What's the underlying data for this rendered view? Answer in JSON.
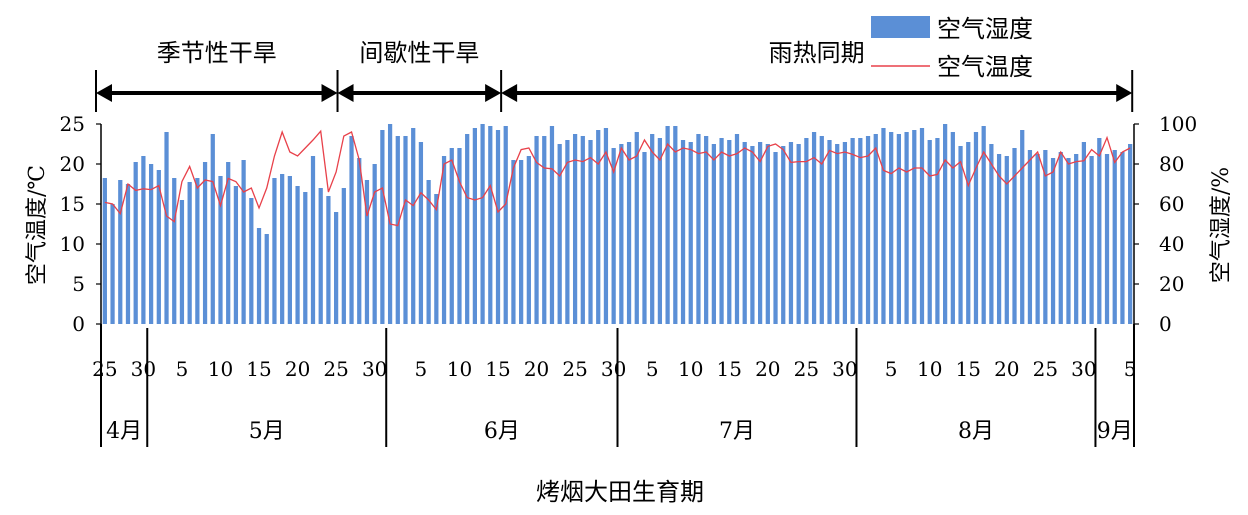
{
  "chart_data": {
    "type": "bar+line",
    "xlabel": "烤烟大田生育期",
    "ylabel_left": "空气温度/℃",
    "ylabel_right": "空气湿度/%",
    "ylim_left": [
      0,
      25
    ],
    "ylim_right": [
      0,
      100
    ],
    "left_ticks": [
      "0",
      "5",
      "10",
      "15",
      "20",
      "25"
    ],
    "right_ticks": [
      "0",
      "20",
      "40",
      "60",
      "80",
      "100"
    ],
    "legend": {
      "position": "top-right",
      "items": [
        "空气湿度",
        "空气温度"
      ]
    },
    "colors": {
      "bars": "#5b8fd6",
      "line": "#e8414a"
    },
    "phases": [
      {
        "label": "季节性干旱",
        "start_day": 0,
        "end_day": 31
      },
      {
        "label": "间歇性干旱",
        "start_day": 31,
        "end_day": 52
      },
      {
        "label": "雨热同期",
        "start_day": 52,
        "end_day": 133
      }
    ],
    "months": [
      {
        "label": "4月",
        "start_day": 0,
        "end_day": 6
      },
      {
        "label": "5月",
        "start_day": 6,
        "end_day": 37
      },
      {
        "label": "6月",
        "start_day": 37,
        "end_day": 67
      },
      {
        "label": "7月",
        "start_day": 67,
        "end_day": 98
      },
      {
        "label": "8月",
        "start_day": 98,
        "end_day": 129
      },
      {
        "label": "9月",
        "start_day": 129,
        "end_day": 134
      }
    ],
    "day_ticks": [
      {
        "label": "25",
        "day": 0
      },
      {
        "label": "30",
        "day": 5
      },
      {
        "label": "5",
        "day": 10
      },
      {
        "label": "10",
        "day": 15
      },
      {
        "label": "15",
        "day": 20
      },
      {
        "label": "20",
        "day": 25
      },
      {
        "label": "25",
        "day": 30
      },
      {
        "label": "30",
        "day": 35
      },
      {
        "label": "5",
        "day": 41
      },
      {
        "label": "10",
        "day": 46
      },
      {
        "label": "15",
        "day": 51
      },
      {
        "label": "20",
        "day": 56
      },
      {
        "label": "25",
        "day": 61
      },
      {
        "label": "30",
        "day": 66
      },
      {
        "label": "5",
        "day": 71
      },
      {
        "label": "10",
        "day": 76
      },
      {
        "label": "15",
        "day": 81
      },
      {
        "label": "20",
        "day": 86
      },
      {
        "label": "25",
        "day": 91
      },
      {
        "label": "30",
        "day": 96
      },
      {
        "label": "5",
        "day": 102
      },
      {
        "label": "10",
        "day": 107
      },
      {
        "label": "15",
        "day": 112
      },
      {
        "label": "20",
        "day": 117
      },
      {
        "label": "25",
        "day": 122
      },
      {
        "label": "30",
        "day": 127
      },
      {
        "label": "5",
        "day": 133
      }
    ],
    "series": [
      {
        "name": "空气湿度",
        "axis": "right",
        "type": "bar",
        "values": [
          73,
          60,
          72,
          70,
          81,
          84,
          80,
          77,
          96,
          73,
          62,
          71,
          73,
          81,
          95,
          74,
          81,
          69,
          82,
          63,
          48,
          45,
          73,
          75,
          74,
          69,
          66,
          84,
          68,
          64,
          56,
          68,
          94,
          83,
          72,
          80,
          97,
          100,
          94,
          94,
          98,
          91,
          72,
          65,
          84,
          88,
          88,
          95,
          98,
          100,
          99,
          97,
          99,
          82,
          82,
          84,
          94,
          94,
          99,
          90,
          92,
          95,
          94,
          92,
          97,
          98,
          88,
          90,
          91,
          96,
          86,
          95,
          93,
          99,
          99,
          92,
          91,
          95,
          94,
          90,
          93,
          92,
          95,
          91,
          89,
          91,
          90,
          86,
          89,
          91,
          90,
          93,
          96,
          94,
          92,
          90,
          91,
          93,
          93,
          94,
          95,
          98,
          96,
          95,
          96,
          97,
          98,
          92,
          93,
          101,
          96,
          89,
          91,
          96,
          99,
          90,
          85,
          84,
          88,
          97,
          87,
          85,
          87,
          83,
          86,
          83,
          85,
          91,
          84,
          93,
          85,
          87,
          86,
          90
        ]
      },
      {
        "name": "空气温度",
        "axis": "left",
        "type": "line",
        "values": [
          15.2,
          15,
          13.8,
          17.5,
          16.7,
          16.9,
          16.8,
          17.3,
          13.5,
          12.8,
          17.8,
          19.7,
          17,
          18,
          17.8,
          14.8,
          18.2,
          17.8,
          16.5,
          17,
          14.5,
          17,
          21,
          24,
          21.5,
          21,
          22,
          23,
          24.1,
          16.5,
          19,
          23.5,
          24,
          20.5,
          13.5,
          16.5,
          17,
          12.5,
          12.3,
          15.5,
          14.8,
          16.4,
          15.5,
          14.3,
          20,
          20.5,
          17.8,
          15.8,
          15.5,
          15.8,
          17.3,
          14,
          15,
          19.5,
          21.8,
          22,
          20.2,
          19.5,
          19.4,
          18.5,
          20.2,
          20.5,
          20.3,
          20.8,
          20,
          21.5,
          19,
          22,
          20.5,
          21,
          23,
          21.5,
          20.5,
          22.5,
          21.5,
          22,
          21.8,
          21.3,
          21.5,
          20.5,
          21.5,
          21,
          21.3,
          22,
          21.5,
          20.3,
          22.2,
          22.5,
          21.8,
          20.2,
          20.3,
          20.3,
          20.8,
          20,
          21.7,
          21.3,
          21.5,
          21.2,
          20.8,
          21,
          22,
          19.2,
          18.8,
          19.5,
          19,
          19.5,
          19.5,
          18.5,
          18.7,
          20.5,
          19.5,
          20.3,
          17.3,
          19.5,
          21.5,
          20,
          18.5,
          17.5,
          18.5,
          19.5,
          20.5,
          21.5,
          18.5,
          19,
          21.5,
          20,
          20.3,
          20.4,
          21.8,
          21,
          23.3,
          20.2,
          21.5,
          22
        ]
      }
    ]
  }
}
